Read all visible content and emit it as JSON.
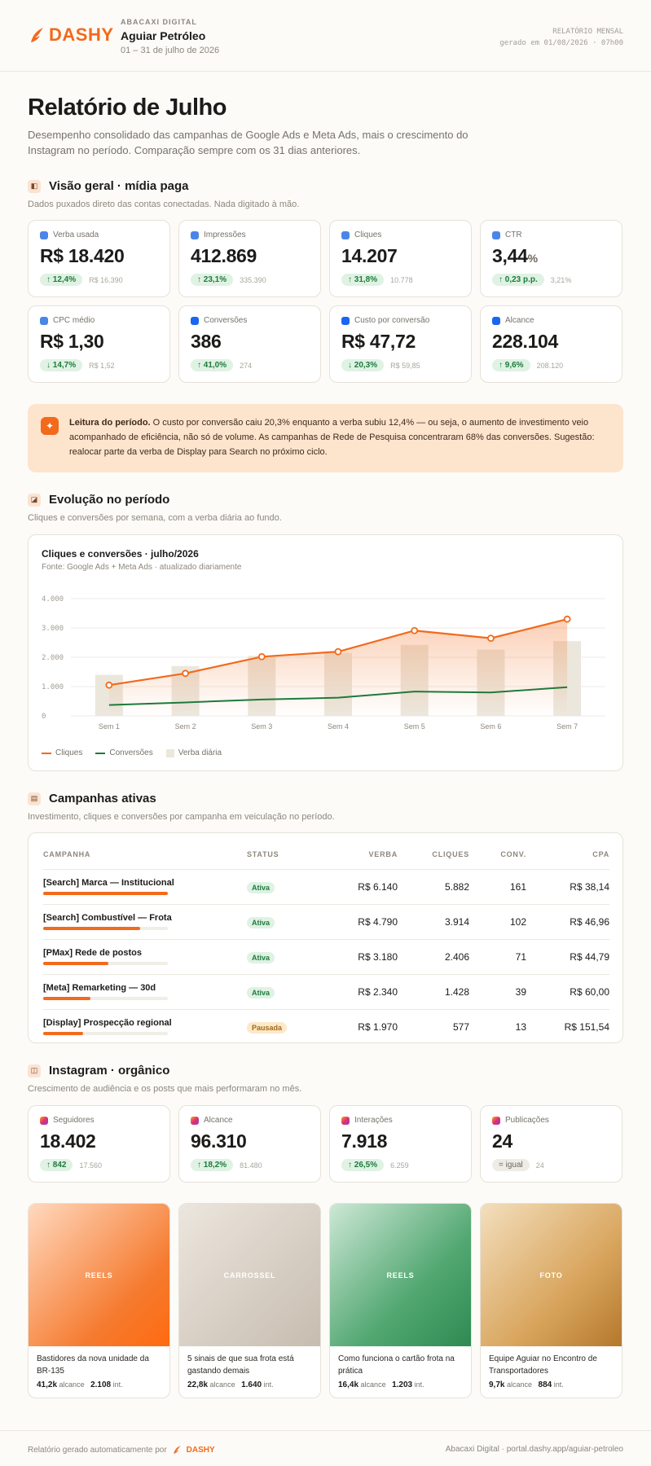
{
  "header": {
    "brand": "DASHY",
    "agency": "ABACAXI DIGITAL",
    "client": "Aguiar Petróleo",
    "period": "01 – 31 de julho de 2026",
    "report_type": "RELATÓRIO MENSAL",
    "generated": "gerado em 01/08/2026 · 07h00"
  },
  "page": {
    "title": "Relatório de Julho",
    "intro": "Desempenho consolidado das campanhas de Google Ads e Meta Ads, mais o crescimento do Instagram no período. Comparação sempre com os 31 dias anteriores."
  },
  "paid": {
    "title": "Visão geral · mídia paga",
    "subtitle": "Dados puxados direto das contas conectadas. Nada digitado à mão.",
    "kpis": [
      {
        "label": "Verba usada",
        "value": "R$ 18.420",
        "unit": "",
        "delta": "↑ 12,4%",
        "prev": "R$ 16.390",
        "color": "#4a86e8"
      },
      {
        "label": "Impressões",
        "value": "412.869",
        "unit": "",
        "delta": "↑ 23,1%",
        "prev": "335.390",
        "color": "#4a86e8"
      },
      {
        "label": "Cliques",
        "value": "14.207",
        "unit": "",
        "delta": "↑ 31,8%",
        "prev": "10.778",
        "color": "#4a86e8"
      },
      {
        "label": "CTR",
        "value": "3,44",
        "unit": "%",
        "delta": "↑ 0,23 p.p.",
        "prev": "3,21%",
        "color": "#4a86e8"
      },
      {
        "label": "CPC médio",
        "value": "R$ 1,30",
        "unit": "",
        "delta": "↓ 14,7%",
        "prev": "R$ 1,52",
        "color": "#4a86e8"
      },
      {
        "label": "Conversões",
        "value": "386",
        "unit": "",
        "delta": "↑ 41,0%",
        "prev": "274",
        "color": "#1a66f0"
      },
      {
        "label": "Custo por conversão",
        "value": "R$ 47,72",
        "unit": "",
        "delta": "↓ 20,3%",
        "prev": "R$ 59,85",
        "color": "#1a66f0"
      },
      {
        "label": "Alcance",
        "value": "228.104",
        "unit": "",
        "delta": "↑ 9,6%",
        "prev": "208.120",
        "color": "#1a66f0"
      }
    ]
  },
  "insight": {
    "lead": "Leitura do período.",
    "text": " O custo por conversão caiu 20,3% enquanto a verba subiu 12,4% — ou seja, o aumento de investimento veio acompanhado de eficiência, não só de volume. As campanhas de Rede de Pesquisa concentraram 68% das conversões. Sugestão: realocar parte da verba de Display para Search no próximo ciclo."
  },
  "evolution": {
    "title": "Evolução no período",
    "subtitle": "Cliques e conversões por semana, com a verba diária ao fundo.",
    "chart_title": "Cliques e conversões · julho/2026",
    "chart_source": "Fonte: Google Ads + Meta Ads · atualizado diariamente",
    "legend": {
      "clicks": "Cliques",
      "conversions": "Conversões",
      "budget": "Verba diária"
    }
  },
  "chart_data": {
    "type": "line",
    "title": "Cliques e conversões · julho/2026",
    "categories": [
      "Sem 1",
      "Sem 2",
      "Sem 3",
      "Sem 4",
      "Sem 5",
      "Sem 6",
      "Sem 7"
    ],
    "y_ticks": [
      "0",
      "1.000",
      "2.000",
      "3.000",
      "4.000"
    ],
    "ylim": [
      0,
      4000
    ],
    "grid": true,
    "legend_position": "bottom-left",
    "series": [
      {
        "name": "Cliques",
        "type": "line",
        "color": "#f26a1b",
        "values": [
          1050,
          1450,
          2020,
          2190,
          2910,
          2650,
          3300
        ]
      },
      {
        "name": "Conversões",
        "type": "line",
        "color": "#1e7a3c",
        "values": [
          370,
          460,
          560,
          620,
          830,
          800,
          980
        ]
      },
      {
        "name": "Verba diária",
        "type": "bar",
        "color": "#ece7dd",
        "values": [
          1400,
          1700,
          2050,
          2150,
          2420,
          2260,
          2550
        ]
      }
    ]
  },
  "campaigns": {
    "title": "Campanhas ativas",
    "subtitle": "Investimento, cliques e conversões por campanha em veiculação no período.",
    "columns": [
      "CAMPANHA",
      "STATUS",
      "VERBA",
      "CLIQUES",
      "CONV.",
      "CPA"
    ],
    "rows": [
      {
        "name": "[Search] Marca — Institucional",
        "status": "Ativa",
        "active": true,
        "budget": "R$ 6.140",
        "clicks": "5.882",
        "conv": "161",
        "cpa": "R$ 38,14",
        "share": 1.0
      },
      {
        "name": "[Search] Combustível — Frota",
        "status": "Ativa",
        "active": true,
        "budget": "R$ 4.790",
        "clicks": "3.914",
        "conv": "102",
        "cpa": "R$ 46,96",
        "share": 0.78
      },
      {
        "name": "[PMax] Rede de postos",
        "status": "Ativa",
        "active": true,
        "budget": "R$ 3.180",
        "clicks": "2.406",
        "conv": "71",
        "cpa": "R$ 44,79",
        "share": 0.52
      },
      {
        "name": "[Meta] Remarketing — 30d",
        "status": "Ativa",
        "active": true,
        "budget": "R$ 2.340",
        "clicks": "1.428",
        "conv": "39",
        "cpa": "R$ 60,00",
        "share": 0.38
      },
      {
        "name": "[Display] Prospecção regional",
        "status": "Pausada",
        "active": false,
        "budget": "R$ 1.970",
        "clicks": "577",
        "conv": "13",
        "cpa": "R$ 151,54",
        "share": 0.32
      }
    ]
  },
  "instagram": {
    "title": "Instagram · orgânico",
    "subtitle": "Crescimento de audiência e os posts que mais performaram no mês.",
    "kpis": [
      {
        "label": "Seguidores",
        "value": "18.402",
        "delta": "↑ 842",
        "prev": "17.560",
        "neutral": false
      },
      {
        "label": "Alcance",
        "value": "96.310",
        "delta": "↑ 18,2%",
        "prev": "81.480",
        "neutral": false
      },
      {
        "label": "Interações",
        "value": "7.918",
        "delta": "↑ 26,5%",
        "prev": "6.259",
        "neutral": false
      },
      {
        "label": "Publicações",
        "value": "24",
        "delta": "= igual",
        "prev": "24",
        "neutral": true
      }
    ],
    "posts": [
      {
        "type": "REELS",
        "caption": "Bastidores da nova unidade da BR-135",
        "reach": "41,2k",
        "reach_label": "alcance",
        "int": "2.108",
        "int_label": "int.",
        "gradient": "linear-gradient(135deg,#ffd9bf,#f57a2e 70%,#ff6a10)"
      },
      {
        "type": "CARROSSEL",
        "caption": "5 sinais de que sua frota está gastando demais",
        "reach": "22,8k",
        "reach_label": "alcance",
        "int": "1.640",
        "int_label": "int.",
        "gradient": "linear-gradient(135deg,#ece6de,#c7bcaf)"
      },
      {
        "type": "REELS",
        "caption": "Como funciona o cartão frota na prática",
        "reach": "16,4k",
        "reach_label": "alcance",
        "int": "1.203",
        "int_label": "int.",
        "gradient": "linear-gradient(135deg,#cde8d6,#53a872 60%,#2e8a52)"
      },
      {
        "type": "FOTO",
        "caption": "Equipe Aguiar no Encontro de Transportadores",
        "reach": "9,7k",
        "reach_label": "alcance",
        "int": "884",
        "int_label": "int.",
        "gradient": "linear-gradient(135deg,#f3dfbd,#d9a65f 60%,#b5782c)"
      }
    ]
  },
  "footer": {
    "left": "Relatório gerado automaticamente por",
    "brand": "DASHY",
    "right": "Abacaxi Digital · portal.dashy.app/aguiar-petroleo"
  }
}
